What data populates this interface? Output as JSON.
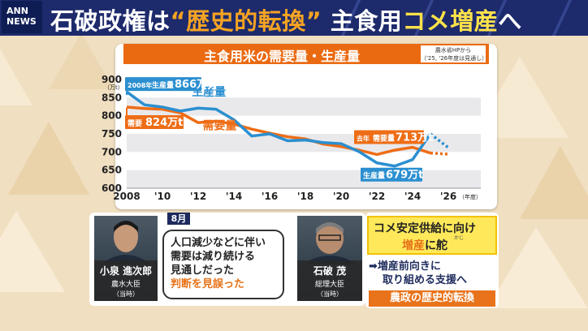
{
  "header": {
    "logo_text": "ANN NEWS",
    "headline_part1": "石破政権は",
    "headline_part2": "“歴史的転換”",
    "headline_part3": " 主食用",
    "headline_part4": "コメ増産",
    "headline_part5": "へ"
  },
  "chart_title": "主食用米の需要量・生産量",
  "source_line1": "農水省HPから",
  "source_line2": "（'25, '26年度は見通し）",
  "chart_data": {
    "type": "line",
    "x_ticks": [
      "2008",
      "'10",
      "'12",
      "'14",
      "'16",
      "'18",
      "'20",
      "'22",
      "'24",
      "'26"
    ],
    "x_unit": "（年度）",
    "y_unit": "（万t）",
    "y_ticks": [
      600,
      650,
      700,
      750,
      800,
      850,
      900
    ],
    "ylim": [
      600,
      900
    ],
    "xlim": [
      2008,
      2026
    ],
    "grid": "horizontal bands",
    "series": [
      {
        "name": "生産量",
        "color": "#2b8fd0",
        "x": [
          2008,
          2009,
          2010,
          2011,
          2012,
          2013,
          2014,
          2015,
          2016,
          2017,
          2018,
          2019,
          2020,
          2021,
          2022,
          2023,
          2024,
          2025,
          2026
        ],
        "y": [
          866,
          830,
          824,
          813,
          821,
          818,
          789,
          744,
          750,
          731,
          733,
          726,
          723,
          701,
          670,
          661,
          679,
          750,
          712
        ],
        "projected_from": 2025
      },
      {
        "name": "需要量",
        "color": "#ee6d16",
        "x": [
          2008,
          2009,
          2010,
          2011,
          2012,
          2013,
          2014,
          2015,
          2016,
          2017,
          2018,
          2019,
          2020,
          2021,
          2022,
          2023,
          2024,
          2025,
          2026
        ],
        "y": [
          824,
          820,
          818,
          808,
          781,
          785,
          777,
          763,
          752,
          742,
          736,
          722,
          715,
          705,
          693,
          705,
          713,
          697,
          694
        ],
        "projected_from": 2025
      }
    ],
    "annotations": {
      "prod_2008": {
        "year": "2008年",
        "label": "生産量",
        "value": "866万t"
      },
      "demand_2008": {
        "label": "需要",
        "value": "824万t"
      },
      "demand_2024": {
        "year": "去年",
        "label": "需要量",
        "value": "713万t"
      },
      "prod_2024": {
        "label": "生産量",
        "value": "679万t"
      }
    }
  },
  "left_person": {
    "name": "小泉 進次郎",
    "role": "農水大臣",
    "when": "（当時）"
  },
  "month_label": "8月",
  "quote": {
    "line1": "人口減少などに伴い",
    "line2": "需要は減り続ける",
    "line3": "見通しだった",
    "line4": "判断を見誤った"
  },
  "right_person": {
    "name": "石破 茂",
    "role": "総理大臣",
    "when": "（当時）"
  },
  "policy": {
    "line1": "コメ安定供給に向け",
    "line2_a": "増産",
    "line2_b": "に舵",
    "ruby": "かじ",
    "support1": "➡増産前向きに",
    "support2": "取り組める支援へ",
    "final": "農政の歴史的転換"
  },
  "colors": {
    "header_bg": "#1d2a6b",
    "accent_orange": "#ea6a12",
    "production_blue": "#2b8fd0",
    "demand_orange": "#ee6d16",
    "highlight_yellow": "#ffe95a"
  }
}
